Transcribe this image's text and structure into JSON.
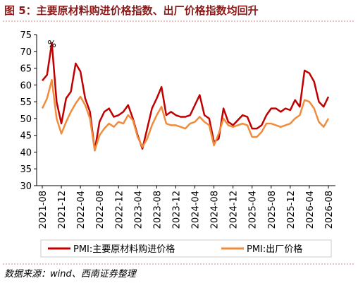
{
  "chart_data": {
    "type": "line",
    "title": "图 5：主要原材料购进价格指数、出厂价格指数均回升",
    "source": "数据来源：wind、西南证券整理",
    "annotation": "%",
    "categories": [
      "2021-08",
      null,
      null,
      null,
      "2021-12",
      null,
      null,
      null,
      "2022-04",
      null,
      null,
      null,
      "2022-08",
      null,
      null,
      null,
      "2022-12",
      null,
      null,
      null,
      "2023-04",
      null,
      null,
      null,
      "2023-08",
      null,
      null,
      null,
      "2023-12",
      null,
      null,
      null,
      "2024-04",
      null,
      null,
      null,
      "2024-08",
      null,
      null,
      null,
      "2024-12",
      null,
      null,
      null,
      "2025-04",
      null,
      null,
      null,
      "2025-08",
      null,
      null,
      null,
      "2025-12",
      null,
      null,
      null,
      "2026-04",
      null,
      null,
      null,
      "2026-08"
    ],
    "series": [
      {
        "name": "PMI:主要原材料购进价格",
        "color": "#c00000",
        "values": [
          61.3,
          63,
          72.5,
          55,
          48.5,
          56,
          58,
          66.4,
          64,
          56,
          52,
          40.5,
          49,
          52,
          53,
          50.5,
          51,
          52,
          54,
          50,
          45,
          41,
          47,
          53,
          56,
          59.4,
          51,
          52,
          51,
          50.5,
          50.5,
          51,
          54,
          57,
          51,
          50,
          43,
          44,
          53,
          49,
          48,
          49.5,
          51,
          50.5,
          47,
          47,
          48,
          51,
          53,
          53,
          52,
          53,
          52.5,
          55.5,
          53.5,
          64.3,
          63.5,
          61,
          55,
          53.5,
          56.5
        ]
      },
      {
        "name": "PMI:出厂价格",
        "color": "#f08c3c",
        "values": [
          53,
          56,
          61.5,
          50,
          45.5,
          49,
          52,
          54.5,
          56.5,
          54,
          50,
          40.5,
          45,
          47,
          48.5,
          47.5,
          49,
          48.5,
          51,
          49.5,
          44.5,
          41.5,
          44,
          48,
          51,
          53.5,
          48.5,
          48,
          48,
          47.5,
          47,
          48.5,
          49,
          50.5,
          49,
          48,
          42,
          45.5,
          50,
          48,
          47.5,
          48,
          48.5,
          48,
          44.5,
          44.5,
          46,
          48.5,
          48.5,
          48,
          47.5,
          48,
          48.5,
          50,
          51,
          55.5,
          55,
          53,
          49,
          47.5,
          50
        ]
      }
    ],
    "ylim": [
      30,
      75
    ],
    "yticks": [
      30,
      35,
      40,
      45,
      50,
      55,
      60,
      65,
      70,
      75
    ],
    "grid": false
  }
}
